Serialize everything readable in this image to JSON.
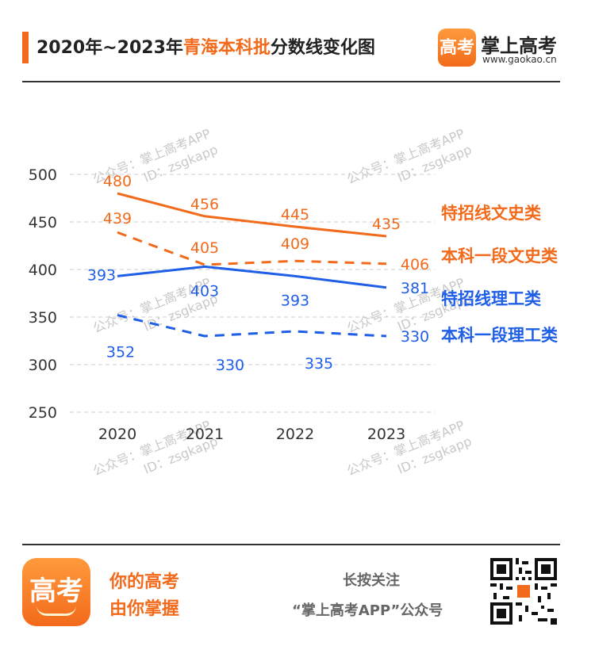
{
  "header": {
    "title_prefix": "2020年~2023年",
    "title_highlight": "青海本科批",
    "title_suffix": "分数线变化图",
    "brand_logo_text": "高考",
    "brand_name": "掌上高考",
    "brand_url": "www.gaokao.cn"
  },
  "watermark": {
    "line1": "公众号：掌上高考APP",
    "line2": "ID：zsgkapp"
  },
  "colors": {
    "accent": "#f26a1b",
    "orange_series": "#f26a1b",
    "blue_series": "#1f5ee6",
    "grid": "#cccccc",
    "watermark": "#c8c8c8"
  },
  "chart_data": {
    "type": "line",
    "title": "",
    "xlabel": "",
    "ylabel": "",
    "categories": [
      "2020",
      "2021",
      "2022",
      "2023"
    ],
    "ylim": [
      250,
      500
    ],
    "yticks": [
      250,
      300,
      350,
      400,
      450,
      500
    ],
    "grid": true,
    "legend_position": "right",
    "series": [
      {
        "name": "特招线文史类",
        "values": [
          480,
          456,
          445,
          435
        ],
        "color": "#f26a1b",
        "style": "solid"
      },
      {
        "name": "本科一段文史类",
        "values": [
          439,
          405,
          409,
          406
        ],
        "color": "#f26a1b",
        "style": "dashed"
      },
      {
        "name": "特招线理工类",
        "values": [
          393,
          403,
          393,
          381
        ],
        "color": "#1f5ee6",
        "style": "solid"
      },
      {
        "name": "本科一段理工类",
        "values": [
          352,
          330,
          335,
          330
        ],
        "color": "#1f5ee6",
        "style": "dashed"
      }
    ]
  },
  "footer": {
    "logo_text": "高考",
    "slogan_line1": "你的高考",
    "slogan_line2": "由你掌握",
    "follow_line1": "长按关注",
    "follow_line2": "“掌上高考APP”公众号"
  }
}
